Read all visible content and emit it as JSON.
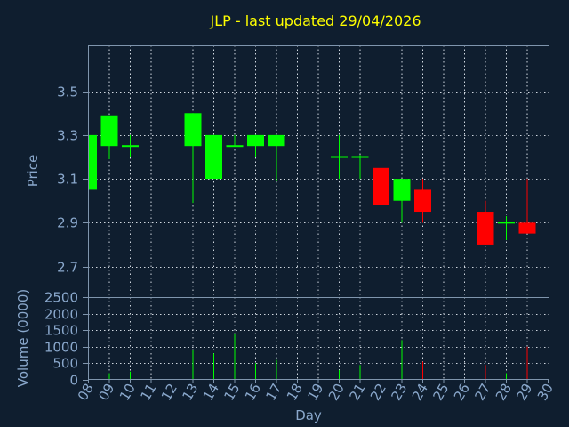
{
  "chart_data": {
    "type": "candlestick",
    "title": "JLP - last updated 29/04/2026",
    "xlabel": "Day",
    "price_panel": {
      "ylabel": "Price",
      "ylim": [
        2.56,
        3.71
      ],
      "yticks": [
        "3.5",
        "3.3",
        "3.1",
        "2.9",
        "2.7"
      ]
    },
    "volume_panel": {
      "ylabel": "Volume (0000)",
      "ylim": [
        0,
        2500
      ],
      "yticks": [
        "2500",
        "2000",
        "1500",
        "1000",
        "500",
        "0"
      ]
    },
    "days": [
      "08",
      "09",
      "10",
      "11",
      "12",
      "13",
      "14",
      "15",
      "16",
      "17",
      "18",
      "19",
      "20",
      "21",
      "22",
      "23",
      "24",
      "25",
      "26",
      "27",
      "28",
      "29",
      "30"
    ],
    "candles": [
      {
        "day": "08",
        "open": 3.05,
        "high": 3.3,
        "low": 3.05,
        "close": 3.3,
        "volume": 0
      },
      {
        "day": "09",
        "open": 3.25,
        "high": 3.39,
        "low": 3.19,
        "close": 3.39,
        "volume": 200
      },
      {
        "day": "10",
        "open": 3.25,
        "high": 3.3,
        "low": 3.2,
        "close": 3.25,
        "volume": 250
      },
      {
        "day": "13",
        "open": 3.25,
        "high": 3.4,
        "low": 2.99,
        "close": 3.4,
        "volume": 900
      },
      {
        "day": "14",
        "open": 3.1,
        "high": 3.3,
        "low": 3.1,
        "close": 3.3,
        "volume": 800
      },
      {
        "day": "15",
        "open": 3.25,
        "high": 3.3,
        "low": 3.25,
        "close": 3.25,
        "volume": 1400
      },
      {
        "day": "16",
        "open": 3.25,
        "high": 3.3,
        "low": 3.2,
        "close": 3.3,
        "volume": 500
      },
      {
        "day": "17",
        "open": 3.25,
        "high": 3.3,
        "low": 3.09,
        "close": 3.3,
        "volume": 600
      },
      {
        "day": "20",
        "open": 3.2,
        "high": 3.3,
        "low": 3.1,
        "close": 3.2,
        "volume": 300
      },
      {
        "day": "21",
        "open": 3.2,
        "high": 3.21,
        "low": 3.1,
        "close": 3.2,
        "volume": 450
      },
      {
        "day": "22",
        "open": 3.15,
        "high": 3.2,
        "low": 2.9,
        "close": 2.98,
        "volume": 1150
      },
      {
        "day": "23",
        "open": 3.0,
        "high": 3.1,
        "low": 2.9,
        "close": 3.1,
        "volume": 1200
      },
      {
        "day": "24",
        "open": 3.05,
        "high": 3.1,
        "low": 2.9,
        "close": 2.95,
        "volume": 550
      },
      {
        "day": "27",
        "open": 2.95,
        "high": 3.0,
        "low": 2.8,
        "close": 2.8,
        "volume": 450
      },
      {
        "day": "28",
        "open": 2.9,
        "high": 2.93,
        "low": 2.82,
        "close": 2.9,
        "volume": 200
      },
      {
        "day": "29",
        "open": 2.9,
        "high": 3.1,
        "low": 2.85,
        "close": 2.85,
        "volume": 1000
      }
    ],
    "colors": {
      "up": "#00ff00",
      "down": "#ff0000",
      "background": "#0f1e2f",
      "title": "#ffff00",
      "text": "#8aa8cc"
    },
    "grid": true
  }
}
